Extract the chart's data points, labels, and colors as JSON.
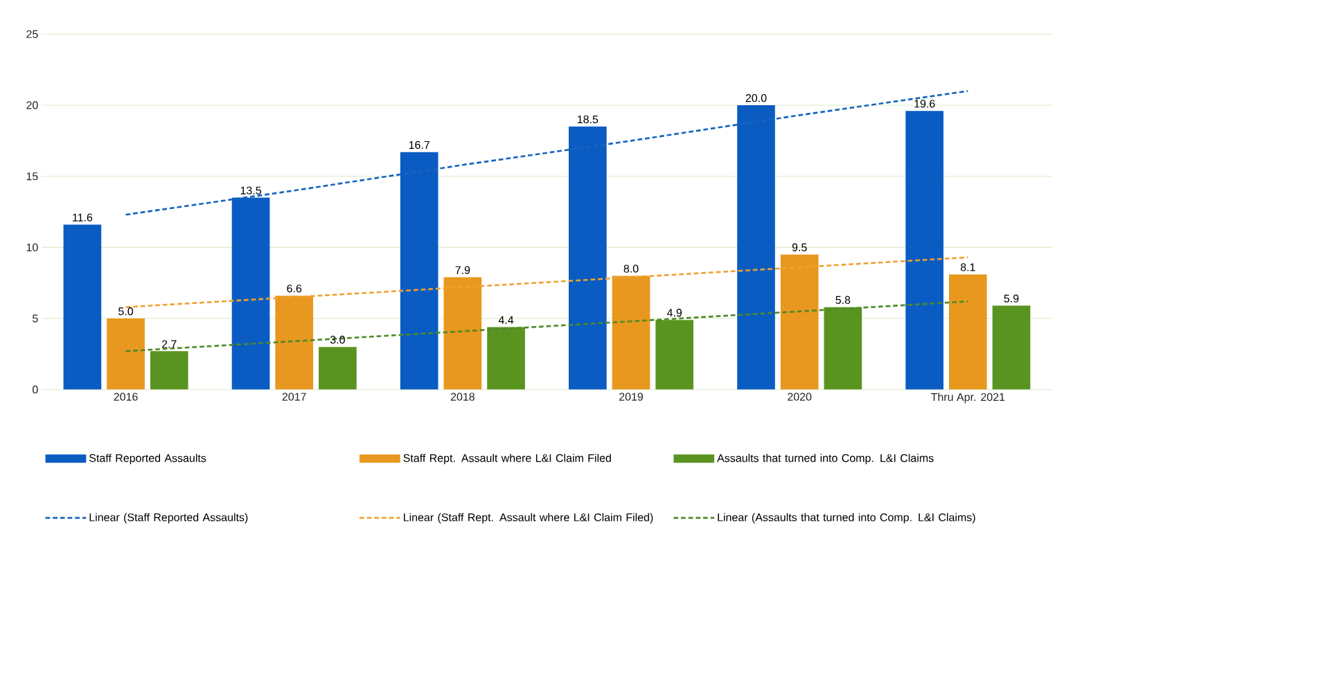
{
  "chart_data": {
    "type": "bar",
    "categories": [
      "2016",
      "2017",
      "2018",
      "2019",
      "2020",
      "Thru Apr. 2021"
    ],
    "series": [
      {
        "name": "Staff Reported Assaults",
        "color": "#0a5cc2",
        "values": [
          11.6,
          13.5,
          16.7,
          18.5,
          20.0,
          19.6
        ],
        "value_labels": [
          "11.6",
          "13.5",
          "16.7",
          "18.5",
          "20.0",
          "19.6"
        ]
      },
      {
        "name": "Staff Rept. Assault where L&I Claim Filed",
        "color": "#e8981e",
        "values": [
          5.0,
          6.6,
          7.9,
          8.0,
          9.5,
          8.1
        ],
        "value_labels": [
          "5.0",
          "6.6",
          "7.9",
          "8.0",
          "9.5",
          "8.1"
        ]
      },
      {
        "name": "Assaults that turned into Comp. L&I Claims",
        "color": "#5a9420",
        "values": [
          2.7,
          3.0,
          4.4,
          4.9,
          5.8,
          5.9
        ],
        "value_labels": [
          "2.7",
          "3.0",
          "4.4",
          "4.9",
          "5.8",
          "5.9"
        ]
      },
      {
        "name": "Linear (Staff Reported Assaults)",
        "type": "line",
        "line_style": "dashed",
        "color": "#1565c0",
        "values": [
          12.3,
          14.0,
          15.8,
          17.5,
          19.3,
          21.0
        ]
      },
      {
        "name": "Linear (Staff Rept. Assault where L&I Claim Filed)",
        "type": "line",
        "line_style": "dashed",
        "color": "#f0a030",
        "values": [
          5.8,
          6.5,
          7.2,
          7.9,
          8.6,
          9.3
        ]
      },
      {
        "name": "Linear (Assaults that turned into Comp. L&I Claims)",
        "type": "line",
        "line_style": "dashed",
        "color": "#4e8a2a",
        "values": [
          2.7,
          3.4,
          4.1,
          4.8,
          5.5,
          6.2
        ]
      }
    ],
    "ylim": [
      0,
      25
    ],
    "yticks": [
      0,
      5,
      10,
      15,
      20,
      25
    ],
    "grid": "y",
    "legend": "bottom"
  }
}
